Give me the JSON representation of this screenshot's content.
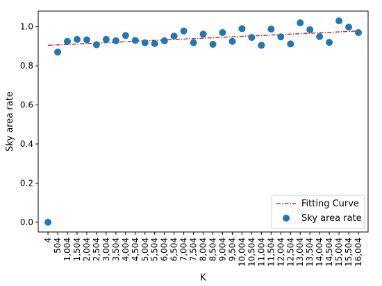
{
  "chart_data": {
    "type": "scatter",
    "xlabel": "K",
    "ylabel": "Sky area rate",
    "x_tick_labels": [
      "4",
      "504",
      "1,004",
      "1,504",
      "2,004",
      "2,504",
      "3,004",
      "3,504",
      "4,004",
      "4,504",
      "5,004",
      "5,504",
      "6,004",
      "6,504",
      "7,004",
      "7,504",
      "8,004",
      "8,504",
      "9,004",
      "9,504",
      "10,004",
      "10,504",
      "11,004",
      "11,504",
      "12,004",
      "12,504",
      "13,004",
      "13,504",
      "14,004",
      "14,504",
      "15,004",
      "15,504",
      "16,004"
    ],
    "y_ticks": [
      0.0,
      0.2,
      0.4,
      0.6,
      0.8,
      1.0
    ],
    "y_tick_labels": [
      "0.0",
      "0.2",
      "0.4",
      "0.6",
      "0.8",
      "1.0"
    ],
    "xlim": [
      -500,
      16504
    ],
    "ylim": [
      -0.05,
      1.08
    ],
    "grid": false,
    "legend": {
      "position": "bottom-right",
      "entries": [
        "Fitting Curve",
        "Sky area rate"
      ]
    },
    "series": [
      {
        "name": "Sky area rate",
        "kind": "scatter",
        "color": "#1f77b4",
        "x": [
          4,
          504,
          1004,
          1504,
          2004,
          2504,
          3004,
          3504,
          4004,
          4504,
          5004,
          5504,
          6004,
          6504,
          7004,
          7504,
          8004,
          8504,
          9004,
          9504,
          10004,
          10504,
          11004,
          11504,
          12004,
          12504,
          13004,
          13504,
          14004,
          14504,
          15004,
          15504,
          16004
        ],
        "y": [
          0.0,
          0.87,
          0.925,
          0.935,
          0.933,
          0.908,
          0.935,
          0.928,
          0.955,
          0.93,
          0.918,
          0.914,
          0.928,
          0.952,
          0.978,
          0.918,
          0.962,
          0.91,
          0.97,
          0.925,
          0.99,
          0.945,
          0.905,
          0.988,
          0.948,
          0.912,
          1.02,
          0.985,
          0.95,
          0.92,
          1.03,
          0.998,
          0.97
        ]
      },
      {
        "name": "Fitting Curve",
        "kind": "line",
        "color": "#d62728",
        "style": "dashdot",
        "x": [
          4,
          16004
        ],
        "y": [
          0.905,
          0.978
        ]
      }
    ]
  }
}
